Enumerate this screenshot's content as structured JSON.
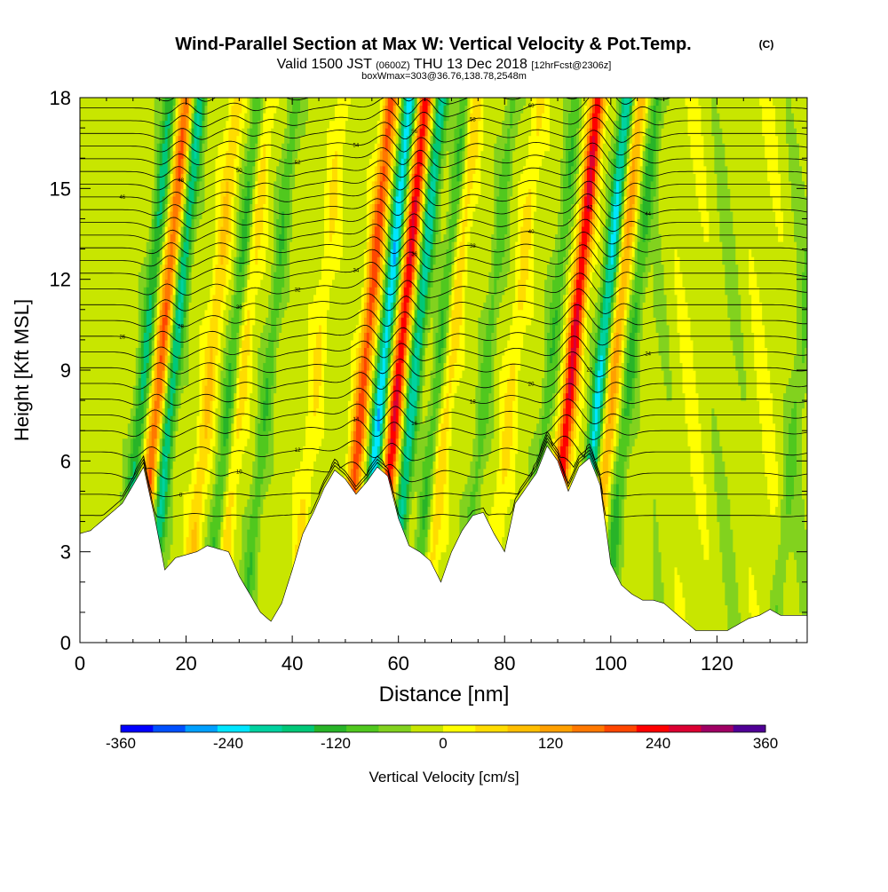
{
  "chart_data": {
    "type": "heatmap",
    "title": "Wind-Parallel Section at Max W: Vertical Velocity & Pot.Temp.",
    "title_tag": "(C)",
    "subtitle": {
      "valid": "Valid 1500 JST",
      "utc": "(0600Z)",
      "date": "THU 13 Dec 2018",
      "forecast": "[12hrFcst@2306z]"
    },
    "box_note": "boxWmax=303@36.76,138.78,2548m",
    "xlabel": "Distance [nm]",
    "ylabel": "Height [Kft MSL]",
    "xlim": [
      0,
      137
    ],
    "ylim": [
      0,
      18
    ],
    "x_ticks": [
      0,
      20,
      40,
      60,
      80,
      100,
      120
    ],
    "y_ticks": [
      0,
      3,
      6,
      9,
      12,
      15,
      18
    ],
    "colorbar": {
      "label": "Vertical Velocity [cm/s]",
      "range": [
        -360,
        360
      ],
      "step": 40,
      "tick_labels": [
        "-360",
        "-240",
        "-120",
        "0",
        "120",
        "240",
        "360"
      ],
      "colors": [
        "#0000ff",
        "#0050ff",
        "#00a0ff",
        "#00e6ff",
        "#00d2a0",
        "#00c878",
        "#28b428",
        "#50c81e",
        "#82d21e",
        "#c8e600",
        "#ffff00",
        "#ffdc00",
        "#ffbe00",
        "#ffa000",
        "#ff7800",
        "#ff4600",
        "#ff0000",
        "#dc0032",
        "#a00064",
        "#500096"
      ]
    },
    "background_w": 20,
    "updrafts": [
      {
        "x": 13.5,
        "peak_w": 220
      },
      {
        "x": 23,
        "peak_w": 100
      },
      {
        "x": 29,
        "peak_w": 80
      },
      {
        "x": 43,
        "peak_w": 60
      },
      {
        "x": 52,
        "peak_w": 240
      },
      {
        "x": 58.5,
        "peak_w": 300
      },
      {
        "x": 68,
        "peak_w": 90
      },
      {
        "x": 80,
        "peak_w": 70
      },
      {
        "x": 91,
        "peak_w": 303
      },
      {
        "x": 99,
        "peak_w": 150
      }
    ],
    "downdrafts": [
      {
        "x": 10.5,
        "peak_w": -150
      },
      {
        "x": 16,
        "peak_w": -180
      },
      {
        "x": 27,
        "peak_w": -110
      },
      {
        "x": 34,
        "peak_w": -90
      },
      {
        "x": 55.5,
        "peak_w": -250
      },
      {
        "x": 61.5,
        "peak_w": -200
      },
      {
        "x": 66,
        "peak_w": -100
      },
      {
        "x": 75,
        "peak_w": -80
      },
      {
        "x": 87,
        "peak_w": -90
      },
      {
        "x": 96.5,
        "peak_w": -230
      },
      {
        "x": 102,
        "peak_w": -110
      },
      {
        "x": 134,
        "peak_w": -60
      }
    ],
    "terrain": {
      "x": [
        0,
        2,
        4,
        6,
        8,
        10,
        12,
        14,
        16,
        18,
        20,
        22,
        24,
        26,
        28,
        30,
        32,
        34,
        36,
        38,
        40,
        42,
        44,
        46,
        48,
        50,
        52,
        54,
        56,
        58,
        60,
        62,
        64,
        66,
        68,
        70,
        72,
        74,
        76,
        78,
        80,
        82,
        84,
        86,
        88,
        90,
        92,
        94,
        96,
        98,
        100,
        102,
        104,
        106,
        108,
        110,
        112,
        114,
        116,
        118,
        120,
        122,
        124,
        126,
        128,
        130,
        132,
        134,
        136,
        137
      ],
      "height": [
        3.6,
        3.7,
        4.0,
        4.3,
        4.6,
        5.2,
        5.8,
        4.2,
        2.4,
        2.8,
        2.9,
        3.0,
        3.2,
        3.1,
        3.0,
        2.2,
        1.6,
        1.0,
        0.7,
        1.3,
        2.4,
        3.6,
        4.3,
        5.1,
        5.7,
        5.4,
        4.9,
        5.3,
        5.8,
        5.5,
        4.1,
        3.2,
        3.0,
        2.7,
        2.0,
        3.0,
        3.7,
        4.2,
        4.3,
        3.6,
        3.0,
        4.6,
        5.1,
        5.6,
        6.5,
        6.0,
        5.0,
        5.8,
        6.1,
        5.2,
        2.6,
        1.9,
        1.6,
        1.4,
        1.4,
        1.3,
        1.0,
        0.7,
        0.4,
        0.4,
        0.4,
        0.4,
        0.6,
        0.8,
        0.9,
        1.1,
        0.9,
        0.9,
        0.9,
        0.9
      ]
    },
    "theta": {
      "count": 31,
      "base_height": 4.2,
      "spacing_low": 0.7,
      "spacing_mid": 0.52,
      "spacing_high": 0.42,
      "contour_labels": [
        "6",
        "8",
        "10",
        "12",
        "14",
        "16",
        "18",
        "20",
        "22",
        "24",
        "26",
        "28",
        "30",
        "32",
        "34",
        "36",
        "38",
        "40",
        "42",
        "44",
        "46",
        "48",
        "50",
        "52",
        "54",
        "56",
        "58",
        "60",
        "62",
        "64",
        "66"
      ]
    }
  }
}
